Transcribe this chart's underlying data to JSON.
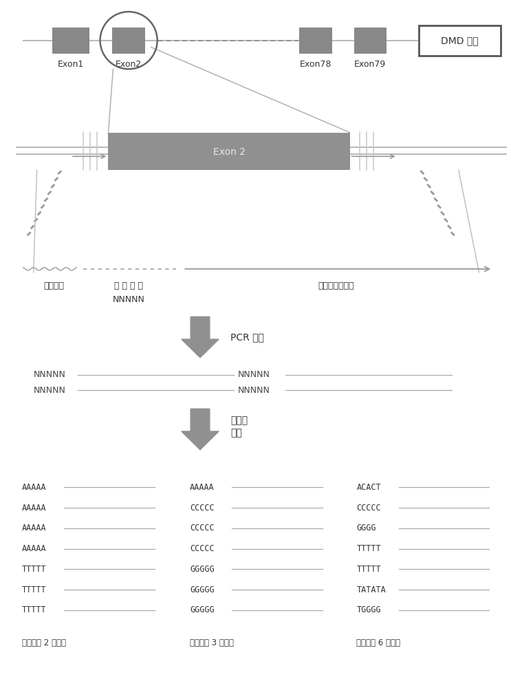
{
  "bg_color": "#ffffff",
  "dmd_label": "DMD 基因",
  "exon_labels": [
    "Exon1",
    "Exon2",
    "Exon78",
    "Exon79"
  ],
  "exon2_label": "Exon 2",
  "primer_label_1": "通用序列",
  "primer_label_2": "随 机 序 列",
  "primer_label_2b": "NNNNN",
  "primer_label_3": "特异性引物序列",
  "pcr_label": "PCR 扩增",
  "seq_label_1": "测序与",
  "seq_label_2": "比对",
  "exon_color": "#888888",
  "exon2_big_color": "#909090",
  "arrow_color": "#888888",
  "line_color": "#aaaaaa",
  "seq_groups": [
    {
      "seqs": [
        "AAAAA",
        "AAAAA",
        "AAAAA",
        "AAAAA",
        "TTTTT",
        "TTTTT",
        "TTTTT"
      ],
      "footer": "只计算为 2 种标签"
    },
    {
      "seqs": [
        "AAAAA",
        "CCCCC",
        "CCCCC",
        "CCCCC",
        "GGGGG",
        "GGGGG",
        "GGGGG"
      ],
      "footer": "只计算为 3 种标签"
    },
    {
      "seqs": [
        "ACACT",
        "CCCCC",
        "GGGG",
        "TTTTT",
        "TTTTT",
        "TATATA",
        "TGGGG"
      ],
      "footer": "只计算为 6 种标签"
    }
  ]
}
